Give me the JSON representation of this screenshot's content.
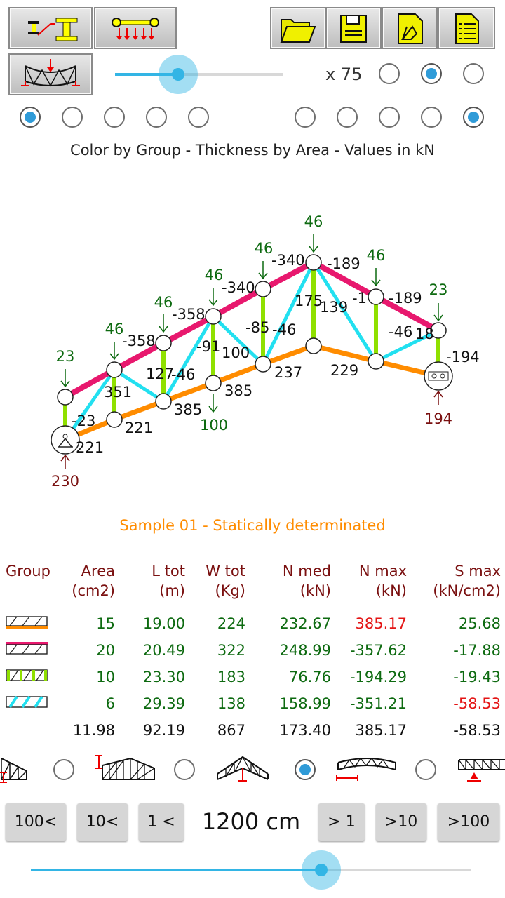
{
  "toolbar": {
    "left_buttons": [
      "profile-section-icon",
      "load-beam-icon"
    ],
    "right_buttons": [
      "open-folder-icon",
      "save-disk-icon",
      "export-drawing-icon",
      "report-list-icon"
    ],
    "deform_button": "deformed-truss-icon"
  },
  "scale": {
    "label": "x 75",
    "slider_fraction": 0.38,
    "options_selected_index": 1
  },
  "color_mode_radios": {
    "selected_index": 0
  },
  "thickness_mode_radios": {
    "selected_index": 4
  },
  "legend_text": "Color by Group - Thickness by Area - Values in kN",
  "diagram": {
    "loads": [
      "23",
      "46",
      "46",
      "46",
      "46",
      "46",
      "23"
    ],
    "bottom_load": "100",
    "reactions": [
      "230",
      "194"
    ],
    "top_chord_values": [
      "-358",
      "-358",
      "-340",
      "-340",
      "-189",
      "-1",
      "-189",
      "18"
    ],
    "bottom_chord_values": [
      "221",
      "221",
      "385",
      "385",
      "237",
      "229"
    ],
    "web_values": [
      "-23",
      "351",
      "127",
      "-46",
      "-91",
      "100",
      "-85",
      "-46",
      "175",
      "139",
      "-46",
      "-194"
    ]
  },
  "sample_title": "Sample 01 - Statically determinated",
  "table": {
    "headers": [
      [
        "Group",
        ""
      ],
      [
        "Area",
        "(cm2)"
      ],
      [
        "L tot",
        "(m)"
      ],
      [
        "W tot",
        "(Kg)"
      ],
      [
        "N med",
        "(kN)"
      ],
      [
        "N max",
        "(kN)"
      ],
      [
        "S max",
        "(kN/cm2)"
      ]
    ],
    "rows": [
      {
        "group_color": "#ff8c00",
        "area": "15",
        "ltot": "19.00",
        "wtot": "224",
        "nmed": "232.67",
        "nmax": "385.17",
        "smax": "25.68",
        "nmax_red": true,
        "smax_red": false
      },
      {
        "group_color": "#e8186e",
        "area": "20",
        "ltot": "20.49",
        "wtot": "322",
        "nmed": "248.99",
        "nmax": "-357.62",
        "smax": "-17.88",
        "nmax_red": false,
        "smax_red": false
      },
      {
        "group_color": "#8fe000",
        "area": "10",
        "ltot": "23.30",
        "wtot": "183",
        "nmed": "76.76",
        "nmax": "-194.29",
        "smax": "-19.43",
        "nmax_red": false,
        "smax_red": false
      },
      {
        "group_color": "#22e0f0",
        "area": "6",
        "ltot": "29.39",
        "wtot": "138",
        "nmed": "158.99",
        "nmax": "-351.21",
        "smax": "-58.53",
        "nmax_red": false,
        "smax_red": true
      }
    ],
    "totals": {
      "area": "11.98",
      "ltot": "92.19",
      "wtot": "867",
      "nmed": "173.40",
      "nmax": "385.17",
      "smax": "-58.53"
    }
  },
  "truss_types": {
    "selected_index": 2
  },
  "span": {
    "value": "1200 cm",
    "buttons": [
      "100<",
      "10<",
      "1 <",
      "> 1",
      ">10",
      ">100"
    ],
    "slider_fraction": 0.66
  },
  "colors": {
    "accent": "#33b5e5",
    "title_orange": "#ff8c00",
    "value_green": "#0d6a10",
    "reaction_red": "#7a1010",
    "alert_red": "#e41515"
  }
}
